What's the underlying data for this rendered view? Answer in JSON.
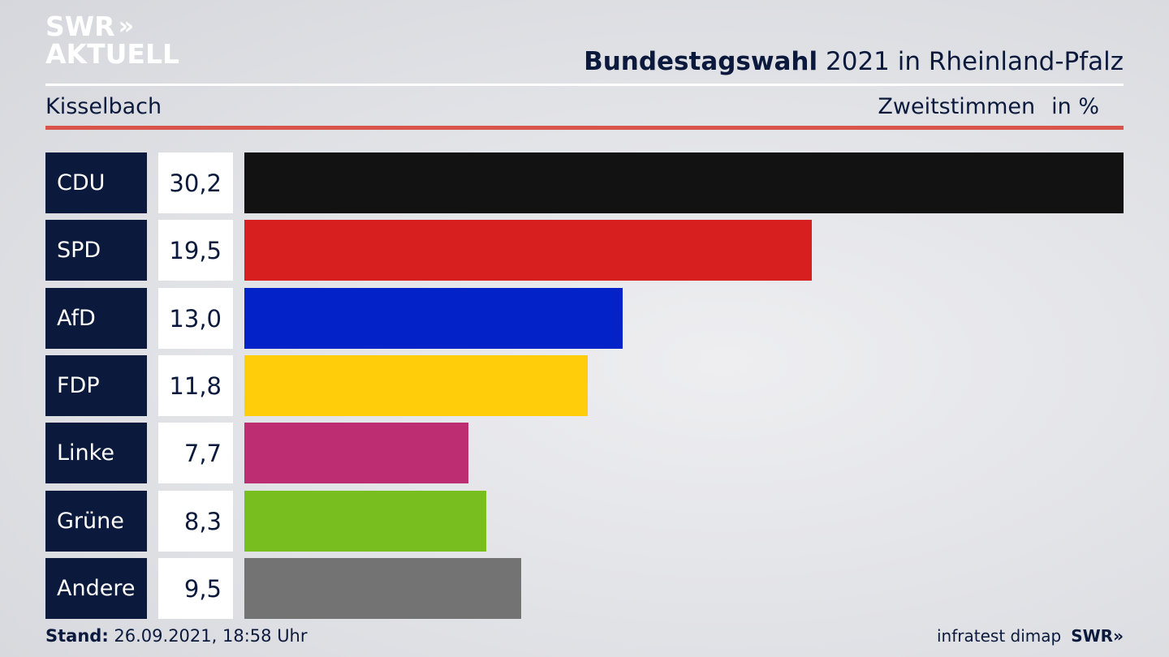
{
  "logo": {
    "line1": "SWR",
    "line2": "AKTUELL",
    "chevrons": "»"
  },
  "header": {
    "title_bold": "Bundestagswahl",
    "title_rest": "2021 in Rheinland-Pfalz",
    "location": "Kisselbach",
    "measure": "Zweitstimmen",
    "unit": "in %"
  },
  "chart_data": {
    "type": "bar",
    "orientation": "horizontal",
    "categories": [
      "CDU",
      "SPD",
      "AfD",
      "FDP",
      "Linke",
      "Grüne",
      "Andere"
    ],
    "values": [
      30.2,
      19.5,
      13.0,
      11.8,
      7.7,
      8.3,
      9.5
    ],
    "value_labels": [
      "30,2",
      "19,5",
      "13,0",
      "11,8",
      "7,7",
      "8,3",
      "9,5"
    ],
    "colors": [
      "#121212",
      "#d81f1f",
      "#0323c8",
      "#ffcd0a",
      "#bd2d72",
      "#78be1e",
      "#737374"
    ],
    "xlim": [
      0,
      30.2
    ],
    "grid": false,
    "legend": "none"
  },
  "footer": {
    "stand_label": "Stand:",
    "stand_value": "26.09.2021, 18:58 Uhr",
    "source": "infratest dimap",
    "brand": "SWR",
    "brand_chevrons": "»"
  }
}
